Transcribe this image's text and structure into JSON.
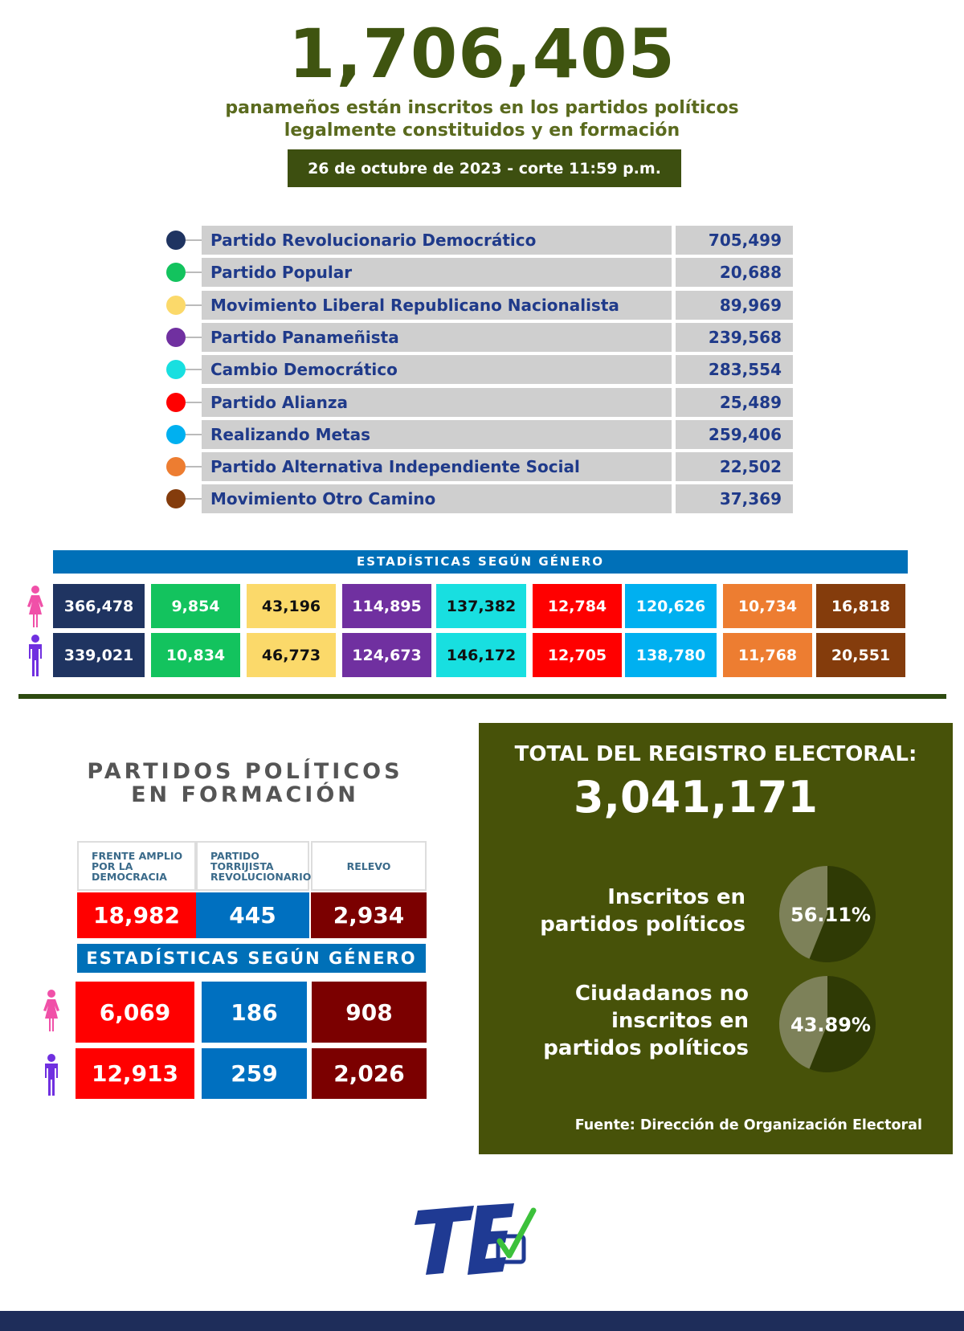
{
  "header": {
    "total": "1,706,405",
    "subtitle_line1": "panameños están inscritos en los partidos políticos",
    "subtitle_line2": "legalmente constituidos y en formación",
    "date": "26 de octubre de 2023 - corte 11:59 p.m."
  },
  "parties": [
    {
      "name": "Partido Revolucionario Democrático",
      "value": "705,499",
      "color": "#1f3461"
    },
    {
      "name": "Partido Popular",
      "value": "20,688",
      "color": "#13c35e"
    },
    {
      "name": "Movimiento Liberal Republicano Nacionalista",
      "value": "89,969",
      "color": "#fbd96a"
    },
    {
      "name": "Partido Panameñista",
      "value": "239,568",
      "color": "#7030a0"
    },
    {
      "name": "Cambio Democrático",
      "value": "283,554",
      "color": "#18dfe0"
    },
    {
      "name": "Partido Alianza",
      "value": "25,489",
      "color": "#ff0000"
    },
    {
      "name": "Realizando Metas",
      "value": "259,406",
      "color": "#00b0f0"
    },
    {
      "name": "Partido Alternativa Independiente Social",
      "value": "22,502",
      "color": "#ed7d31"
    },
    {
      "name": "Movimiento Otro Camino",
      "value": "37,369",
      "color": "#843c0c"
    }
  ],
  "gender": {
    "title": "ESTADÍSTICAS SEGÚN GÉNERO",
    "female": [
      "366,478",
      "9,854",
      "43,196",
      "114,895",
      "137,382",
      "12,784",
      "120,626",
      "10,734",
      "16,818"
    ],
    "male": [
      "339,021",
      "10,834",
      "46,773",
      "124,673",
      "146,172",
      "12,705",
      "138,780",
      "11,768",
      "20,551"
    ]
  },
  "formation": {
    "title_line1": "PARTIDOS POLÍTICOS",
    "title_line2": "EN FORMACIÓN",
    "parties": [
      {
        "name": "FRENTE AMPLIO POR LA DEMOCRACIA",
        "value": "18,982",
        "female": "6,069",
        "male": "12,913",
        "color": "#ff0000"
      },
      {
        "name": "PARTIDO TORRIJISTA REVOLUCIONARIO",
        "value": "445",
        "female": "186",
        "male": "259",
        "color": "#0070c0"
      },
      {
        "name": "RELEVO",
        "value": "2,934",
        "female": "908",
        "male": "2,026",
        "color": "#7b0000"
      }
    ],
    "gender_title": "ESTADÍSTICAS SEGÚN GÉNERO"
  },
  "registry": {
    "title": "TOTAL DEL REGISTRO ELECTORAL:",
    "total": "3,041,171",
    "items": [
      {
        "label_lines": [
          "Inscritos en",
          "partidos políticos"
        ],
        "percent": "56.11%"
      },
      {
        "label_lines": [
          "Ciudadanos no",
          "inscritos en",
          "partidos políticos"
        ],
        "percent": "43.89%"
      }
    ],
    "source": "Fuente: Dirección de Organización Electoral"
  },
  "chart_data": [
    {
      "type": "pie",
      "slices": [
        {
          "label": "Inscritos en partidos políticos",
          "value": 56.11,
          "color": "#2f3a05"
        },
        {
          "label": "Ciudadanos no inscritos en partidos políticos",
          "value": 43.89,
          "color": "#7d8159"
        }
      ]
    },
    {
      "type": "pie",
      "slices": [
        {
          "label": "Inscritos en partidos políticos",
          "value": 56.11,
          "color": "#2f3a05"
        },
        {
          "label": "Ciudadanos no inscritos en partidos políticos",
          "value": 43.89,
          "color": "#7d8159"
        }
      ]
    }
  ],
  "logo": {
    "text": "TE",
    "colors": {
      "text": "#1f3a93",
      "check": "#3cc13b"
    }
  },
  "colors": {
    "olive": "#475209",
    "navy": "#1f3a8a",
    "banner": "#0070b8"
  }
}
